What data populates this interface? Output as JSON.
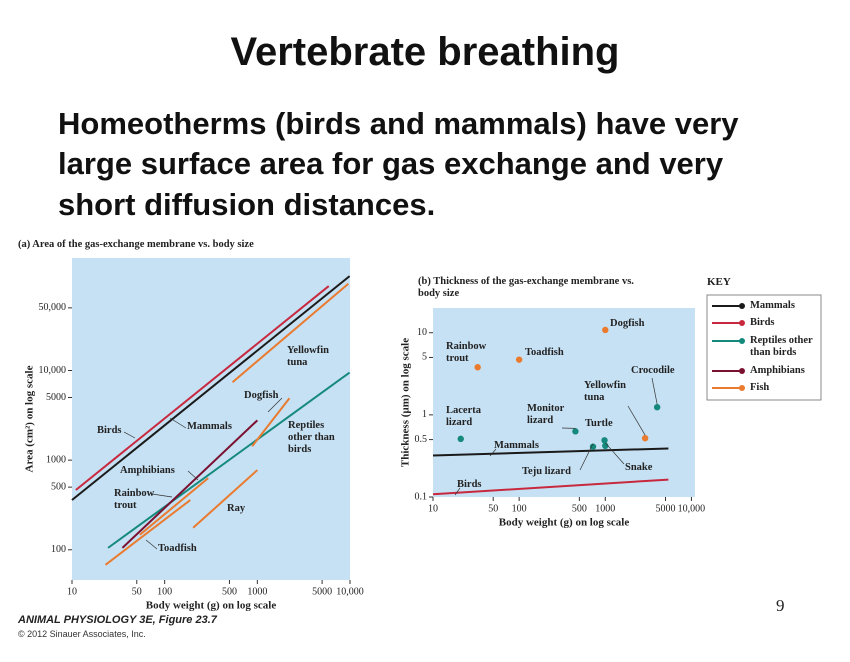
{
  "slide": {
    "title": "Vertebrate breathing",
    "body": [
      "Homeotherms (birds and mammals) have very",
      "large surface area for gas exchange and very",
      "short diffusion distances."
    ],
    "caption": "ANIMAL PHYSIOLOGY 3E, Figure 23.7",
    "copyright": "© 2012 Sinauer Associates, Inc.",
    "page_number": "9"
  },
  "key": {
    "title": "KEY",
    "entries": [
      {
        "name": "Mammals",
        "color": "#1a1a1a"
      },
      {
        "name": "Birds",
        "color": "#c8283e"
      },
      {
        "name": "Reptiles other than birds",
        "color": "#15897c"
      },
      {
        "name": "Amphibians",
        "color": "#7b1131"
      },
      {
        "name": "Fish",
        "color": "#ea7a2e"
      }
    ]
  },
  "chart_data": [
    {
      "type": "line",
      "log_x": true,
      "log_y": true,
      "title": "(a) Area of the gas-exchange membrane vs. body size",
      "x_label": "Body weight (g) on log scale",
      "y_label": "Area (cm²) on log scale",
      "xlim": [
        10,
        10000
      ],
      "ylim": [
        46,
        180000
      ],
      "xticks": [
        10,
        50,
        100,
        500,
        1000,
        5000,
        {
          "value": 10000,
          "label": "10,000"
        }
      ],
      "yticks": [
        100,
        500,
        1000,
        5000,
        {
          "value": 10000,
          "label": "10,000"
        },
        {
          "value": 50000,
          "label": "50,000"
        }
      ],
      "series": [
        {
          "name": "Birds",
          "color": "#c8283e",
          "x": [
            11,
            5900
          ],
          "values": [
            464,
            87500
          ]
        },
        {
          "name": "Mammals",
          "color": "#1a1a1a",
          "x": [
            10,
            9900
          ],
          "values": [
            359,
            113000
          ]
        },
        {
          "name": "Yellowfin tuna",
          "color": "#ea7a2e",
          "x": [
            540,
            9600
          ],
          "values": [
            7400,
            93000
          ]
        },
        {
          "name": "Reptiles other than birds",
          "color": "#15897c",
          "x": [
            24.5,
            9900
          ],
          "values": [
            105,
            9500
          ]
        },
        {
          "name": "Dogfish",
          "color": "#ea7a2e",
          "x": [
            880,
            2220
          ],
          "values": [
            1430,
            4900
          ]
        },
        {
          "name": "Amphibians",
          "color": "#7b1131",
          "x": [
            35,
            1000
          ],
          "values": [
            105,
            2780
          ]
        },
        {
          "name": "Rainbow trout",
          "color": "#ea7a2e",
          "x": [
            54,
            295
          ],
          "values": [
            147,
            630
          ]
        },
        {
          "name": "Toadfish",
          "color": "#ea7a2e",
          "x": [
            23,
            189
          ],
          "values": [
            68,
            359
          ]
        },
        {
          "name": "Ray",
          "color": "#ea7a2e",
          "x": [
            203,
            1000
          ],
          "values": [
            176,
            775
          ]
        }
      ]
    },
    {
      "type": "scatter",
      "log_x": true,
      "log_y": true,
      "title": "(b) Thickness of the gas-exchange membrane vs. body size",
      "x_label": "Body weight (g) on log scale",
      "y_label": "Thickness (µm) on log scale",
      "xlim": [
        10,
        11000
      ],
      "ylim": [
        0.1,
        20
      ],
      "xticks": [
        10,
        50,
        100,
        500,
        1000,
        5000,
        {
          "value": 10000,
          "label": "10,000"
        }
      ],
      "yticks": [
        0.1,
        0.5,
        1,
        5,
        10
      ],
      "series": [
        {
          "name": "Mammals",
          "mode": "line",
          "color": "#1a1a1a",
          "x": [
            10,
            5400
          ],
          "values": [
            0.32,
            0.39
          ]
        },
        {
          "name": "Birds",
          "mode": "line",
          "color": "#c8283e",
          "x": [
            10,
            5400
          ],
          "values": [
            0.108,
            0.163
          ]
        },
        {
          "mode": "markers",
          "color": "#15897c",
          "labels": [
            "Lacerta lizard",
            "Monitor lizard",
            "Teju lizard",
            "Turtle",
            "Snake",
            "Crocodile"
          ],
          "x": [
            21,
            450,
            720,
            980,
            1000,
            4000
          ],
          "values": [
            0.51,
            0.63,
            0.41,
            0.49,
            0.42,
            1.24
          ]
        },
        {
          "mode": "markers",
          "color": "#ea7a2e",
          "labels": [
            "Dogfish",
            "Rainbow trout",
            "Toadfish",
            "Yellowfin tuna"
          ],
          "x": [
            1000,
            33,
            100,
            2900
          ],
          "values": [
            10.8,
            3.8,
            4.7,
            0.52
          ]
        }
      ]
    }
  ]
}
